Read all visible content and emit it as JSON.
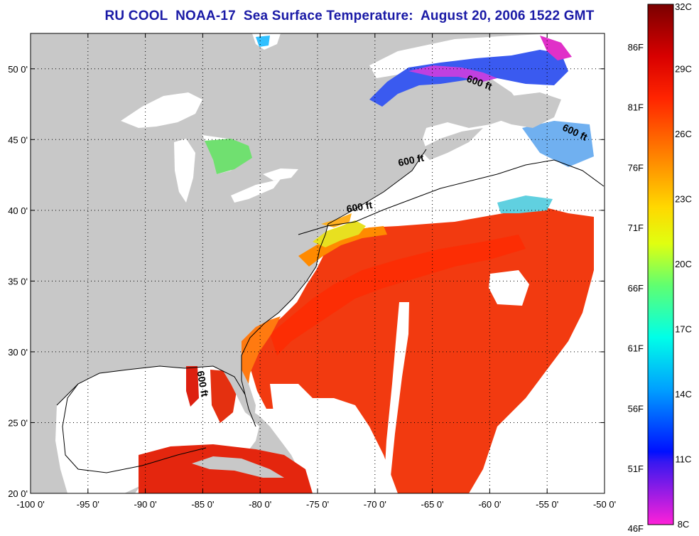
{
  "title": "RU COOL  NOAA-17  Sea Surface Temperature:  August 20, 2006 1522 GMT",
  "map": {
    "lon_range": [
      -100,
      -50
    ],
    "lat_range": [
      20,
      52.5
    ],
    "lon_ticks": [
      {
        "value": -100,
        "label": "-100 0'"
      },
      {
        "value": -95,
        "label": "-95 0'"
      },
      {
        "value": -90,
        "label": "-90 0'"
      },
      {
        "value": -85,
        "label": "-85 0'"
      },
      {
        "value": -80,
        "label": "-80 0'"
      },
      {
        "value": -75,
        "label": "-75 0'"
      },
      {
        "value": -70,
        "label": "-70 0'"
      },
      {
        "value": -65,
        "label": "-65 0'"
      },
      {
        "value": -60,
        "label": "-60 0'"
      },
      {
        "value": -55,
        "label": "-55 0'"
      },
      {
        "value": -50,
        "label": "-50 0'"
      }
    ],
    "lat_ticks": [
      {
        "value": 20,
        "label": "20 0'"
      },
      {
        "value": 25,
        "label": "25 0'"
      },
      {
        "value": 30,
        "label": "30 0'"
      },
      {
        "value": 35,
        "label": "35 0'"
      },
      {
        "value": 40,
        "label": "40 0'"
      },
      {
        "value": 45,
        "label": "45 0'"
      },
      {
        "value": 50,
        "label": "50 0'"
      }
    ],
    "grid": "dotted",
    "contour_labels": [
      {
        "text": "600 ft",
        "lon": -61,
        "lat": 48.8,
        "rotate": 20
      },
      {
        "text": "600 ft",
        "lon": -52.7,
        "lat": 45.3,
        "rotate": 25
      },
      {
        "text": "600 ft",
        "lon": -66.8,
        "lat": 43.3,
        "rotate": -12
      },
      {
        "text": "600 ft",
        "lon": -71.3,
        "lat": 40.0,
        "rotate": -10
      },
      {
        "text": "600 ft",
        "lon": -85.3,
        "lat": 27.7,
        "rotate": 80
      }
    ],
    "colors": {
      "land": "#c8c8c8",
      "no_data": "#ffffff",
      "warm_water": "#f23a10",
      "gulf_stream": "#ff4a00"
    }
  },
  "colorbar": {
    "celsius_labels": [
      "32C",
      "29C",
      "26C",
      "23C",
      "20C",
      "17C",
      "14C",
      "11C",
      "8C"
    ],
    "fahrenheit_labels": [
      "86F",
      "81F",
      "76F",
      "71F",
      "66F",
      "61F",
      "56F",
      "51F",
      "46F"
    ],
    "celsius_range": [
      8,
      32
    ],
    "fahrenheit_values": [
      86,
      81,
      76,
      71,
      66,
      61,
      56,
      51,
      46
    ]
  }
}
